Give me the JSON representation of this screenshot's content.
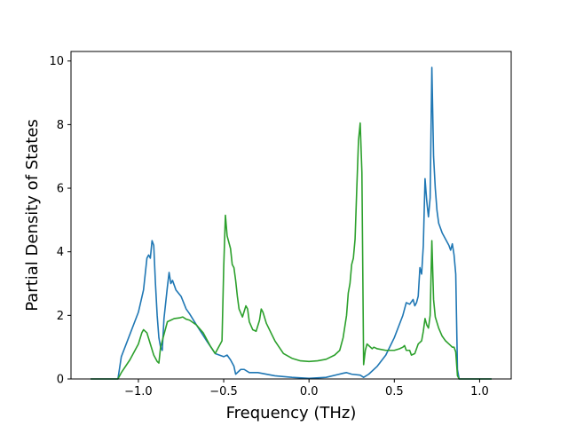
{
  "chart_data": {
    "type": "line",
    "title": "",
    "xlabel": "Frequency (THz)",
    "ylabel": "Partial Density of States",
    "xlim": [
      -1.395,
      1.185
    ],
    "ylim": [
      0,
      10.3
    ],
    "grid": false,
    "legend": "none",
    "xticks": [
      {
        "value": -1.0,
        "label": "−1.0"
      },
      {
        "value": -0.5,
        "label": "−0.5"
      },
      {
        "value": 0.0,
        "label": "0.0"
      },
      {
        "value": 0.5,
        "label": "0.5"
      },
      {
        "value": 1.0,
        "label": "1.0"
      }
    ],
    "yticks": [
      {
        "value": 0,
        "label": "0"
      },
      {
        "value": 2,
        "label": "2"
      },
      {
        "value": 4,
        "label": "4"
      },
      {
        "value": 6,
        "label": "6"
      },
      {
        "value": 8,
        "label": "8"
      },
      {
        "value": 10,
        "label": "10"
      }
    ],
    "series": [
      {
        "color": "#1f77b4",
        "points": [
          [
            -1.28,
            0
          ],
          [
            -1.12,
            0
          ],
          [
            -1.1,
            0.7
          ],
          [
            -1.05,
            1.4
          ],
          [
            -1.0,
            2.1
          ],
          [
            -0.97,
            2.8
          ],
          [
            -0.95,
            3.8
          ],
          [
            -0.94,
            3.9
          ],
          [
            -0.93,
            3.8
          ],
          [
            -0.92,
            4.35
          ],
          [
            -0.91,
            4.2
          ],
          [
            -0.9,
            3.0
          ],
          [
            -0.89,
            2.0
          ],
          [
            -0.88,
            1.3
          ],
          [
            -0.87,
            1.0
          ],
          [
            -0.86,
            0.9
          ],
          [
            -0.85,
            1.9
          ],
          [
            -0.84,
            2.4
          ],
          [
            -0.83,
            2.9
          ],
          [
            -0.82,
            3.35
          ],
          [
            -0.81,
            3.0
          ],
          [
            -0.8,
            3.1
          ],
          [
            -0.78,
            2.8
          ],
          [
            -0.75,
            2.6
          ],
          [
            -0.72,
            2.2
          ],
          [
            -0.7,
            2.05
          ],
          [
            -0.66,
            1.7
          ],
          [
            -0.6,
            1.2
          ],
          [
            -0.55,
            0.8
          ],
          [
            -0.5,
            0.7
          ],
          [
            -0.48,
            0.75
          ],
          [
            -0.46,
            0.6
          ],
          [
            -0.44,
            0.4
          ],
          [
            -0.43,
            0.15
          ],
          [
            -0.4,
            0.3
          ],
          [
            -0.38,
            0.3
          ],
          [
            -0.35,
            0.2
          ],
          [
            -0.3,
            0.2
          ],
          [
            -0.2,
            0.1
          ],
          [
            -0.1,
            0.05
          ],
          [
            0.0,
            0.02
          ],
          [
            0.1,
            0.05
          ],
          [
            0.2,
            0.18
          ],
          [
            0.22,
            0.2
          ],
          [
            0.25,
            0.15
          ],
          [
            0.3,
            0.12
          ],
          [
            0.32,
            0.05
          ],
          [
            0.35,
            0.15
          ],
          [
            0.4,
            0.4
          ],
          [
            0.45,
            0.75
          ],
          [
            0.5,
            1.3
          ],
          [
            0.55,
            2.0
          ],
          [
            0.57,
            2.4
          ],
          [
            0.59,
            2.35
          ],
          [
            0.61,
            2.5
          ],
          [
            0.62,
            2.3
          ],
          [
            0.63,
            2.4
          ],
          [
            0.64,
            2.6
          ],
          [
            0.65,
            3.5
          ],
          [
            0.66,
            3.3
          ],
          [
            0.67,
            4.2
          ],
          [
            0.68,
            6.3
          ],
          [
            0.69,
            5.6
          ],
          [
            0.7,
            5.1
          ],
          [
            0.71,
            5.7
          ],
          [
            0.72,
            9.8
          ],
          [
            0.73,
            7.0
          ],
          [
            0.74,
            6.0
          ],
          [
            0.75,
            5.3
          ],
          [
            0.76,
            4.9
          ],
          [
            0.78,
            4.6
          ],
          [
            0.8,
            4.4
          ],
          [
            0.82,
            4.2
          ],
          [
            0.83,
            4.05
          ],
          [
            0.84,
            4.25
          ],
          [
            0.85,
            3.9
          ],
          [
            0.86,
            3.3
          ],
          [
            0.87,
            0.3
          ],
          [
            0.88,
            0
          ],
          [
            1.07,
            0
          ]
        ]
      },
      {
        "color": "#2ca02c",
        "points": [
          [
            -1.28,
            0
          ],
          [
            -1.12,
            0
          ],
          [
            -1.1,
            0.2
          ],
          [
            -1.05,
            0.6
          ],
          [
            -1.0,
            1.1
          ],
          [
            -0.98,
            1.45
          ],
          [
            -0.97,
            1.55
          ],
          [
            -0.95,
            1.45
          ],
          [
            -0.93,
            1.1
          ],
          [
            -0.91,
            0.75
          ],
          [
            -0.89,
            0.55
          ],
          [
            -0.88,
            0.5
          ],
          [
            -0.87,
            1.0
          ],
          [
            -0.85,
            1.4
          ],
          [
            -0.83,
            1.8
          ],
          [
            -0.81,
            1.85
          ],
          [
            -0.79,
            1.9
          ],
          [
            -0.76,
            1.92
          ],
          [
            -0.74,
            1.95
          ],
          [
            -0.72,
            1.88
          ],
          [
            -0.7,
            1.85
          ],
          [
            -0.66,
            1.7
          ],
          [
            -0.62,
            1.45
          ],
          [
            -0.58,
            1.05
          ],
          [
            -0.55,
            0.8
          ],
          [
            -0.53,
            1.0
          ],
          [
            -0.52,
            1.1
          ],
          [
            -0.51,
            1.2
          ],
          [
            -0.5,
            3.5
          ],
          [
            -0.49,
            5.15
          ],
          [
            -0.48,
            4.5
          ],
          [
            -0.46,
            4.1
          ],
          [
            -0.45,
            3.6
          ],
          [
            -0.44,
            3.5
          ],
          [
            -0.43,
            3.1
          ],
          [
            -0.42,
            2.6
          ],
          [
            -0.41,
            2.2
          ],
          [
            -0.39,
            1.95
          ],
          [
            -0.37,
            2.3
          ],
          [
            -0.36,
            2.2
          ],
          [
            -0.35,
            1.8
          ],
          [
            -0.33,
            1.55
          ],
          [
            -0.31,
            1.5
          ],
          [
            -0.29,
            1.85
          ],
          [
            -0.28,
            2.2
          ],
          [
            -0.27,
            2.1
          ],
          [
            -0.25,
            1.75
          ],
          [
            -0.2,
            1.2
          ],
          [
            -0.15,
            0.8
          ],
          [
            -0.1,
            0.65
          ],
          [
            -0.05,
            0.57
          ],
          [
            0.0,
            0.55
          ],
          [
            0.05,
            0.57
          ],
          [
            0.1,
            0.62
          ],
          [
            0.15,
            0.75
          ],
          [
            0.18,
            0.9
          ],
          [
            0.2,
            1.3
          ],
          [
            0.22,
            2.0
          ],
          [
            0.23,
            2.7
          ],
          [
            0.24,
            3.0
          ],
          [
            0.25,
            3.6
          ],
          [
            0.26,
            3.8
          ],
          [
            0.27,
            4.4
          ],
          [
            0.28,
            6.0
          ],
          [
            0.29,
            7.5
          ],
          [
            0.3,
            8.05
          ],
          [
            0.31,
            6.5
          ],
          [
            0.32,
            0.45
          ],
          [
            0.33,
            0.9
          ],
          [
            0.34,
            1.1
          ],
          [
            0.35,
            1.05
          ],
          [
            0.37,
            0.95
          ],
          [
            0.38,
            1.0
          ],
          [
            0.4,
            0.95
          ],
          [
            0.45,
            0.9
          ],
          [
            0.5,
            0.9
          ],
          [
            0.53,
            0.95
          ],
          [
            0.55,
            1.0
          ],
          [
            0.56,
            1.05
          ],
          [
            0.57,
            0.9
          ],
          [
            0.59,
            0.9
          ],
          [
            0.6,
            0.75
          ],
          [
            0.62,
            0.8
          ],
          [
            0.64,
            1.1
          ],
          [
            0.65,
            1.15
          ],
          [
            0.66,
            1.2
          ],
          [
            0.67,
            1.5
          ],
          [
            0.68,
            1.9
          ],
          [
            0.69,
            1.7
          ],
          [
            0.7,
            1.6
          ],
          [
            0.71,
            2.0
          ],
          [
            0.72,
            4.35
          ],
          [
            0.73,
            2.5
          ],
          [
            0.74,
            1.95
          ],
          [
            0.76,
            1.6
          ],
          [
            0.78,
            1.35
          ],
          [
            0.8,
            1.2
          ],
          [
            0.82,
            1.1
          ],
          [
            0.84,
            1.0
          ],
          [
            0.85,
            1.0
          ],
          [
            0.86,
            0.85
          ],
          [
            0.87,
            0.1
          ],
          [
            0.88,
            0
          ],
          [
            1.07,
            0
          ]
        ]
      }
    ]
  }
}
